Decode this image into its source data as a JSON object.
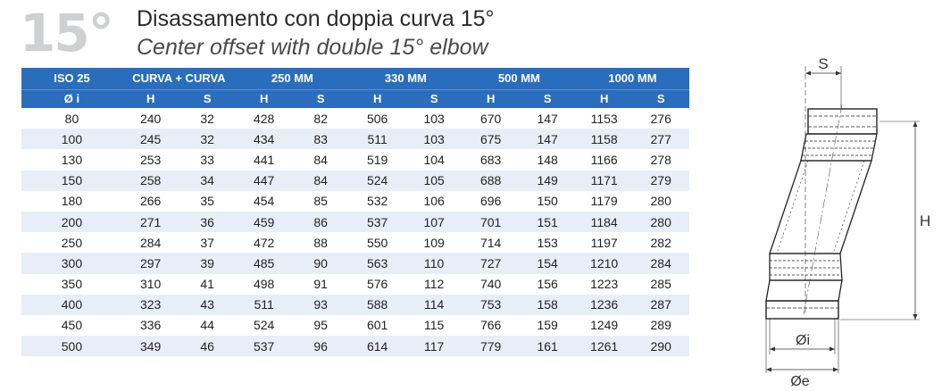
{
  "header": {
    "big_number": "15°",
    "title_it": "Disassamento con doppia curva 15°",
    "title_en": "Center offset with double 15° elbow"
  },
  "table": {
    "group_headers": [
      "ISO 25",
      "CURVA + CURVA",
      "250 MM",
      "330 MM",
      "500 MM",
      "1000 MM"
    ],
    "sub_headers": [
      "Ø i",
      "H",
      "S",
      "H",
      "S",
      "H",
      "S",
      "H",
      "S",
      "H",
      "S"
    ],
    "rows": [
      [
        "80",
        "240",
        "32",
        "428",
        "82",
        "506",
        "103",
        "670",
        "147",
        "1153",
        "276"
      ],
      [
        "100",
        "245",
        "32",
        "434",
        "83",
        "511",
        "103",
        "675",
        "147",
        "1158",
        "277"
      ],
      [
        "130",
        "253",
        "33",
        "441",
        "84",
        "519",
        "104",
        "683",
        "148",
        "1166",
        "278"
      ],
      [
        "150",
        "258",
        "34",
        "447",
        "84",
        "524",
        "105",
        "688",
        "149",
        "1171",
        "279"
      ],
      [
        "180",
        "266",
        "35",
        "454",
        "85",
        "532",
        "106",
        "696",
        "150",
        "1179",
        "280"
      ],
      [
        "200",
        "271",
        "36",
        "459",
        "86",
        "537",
        "107",
        "701",
        "151",
        "1184",
        "280"
      ],
      [
        "250",
        "284",
        "37",
        "472",
        "88",
        "550",
        "109",
        "714",
        "153",
        "1197",
        "282"
      ],
      [
        "300",
        "297",
        "39",
        "485",
        "90",
        "563",
        "110",
        "727",
        "154",
        "1210",
        "284"
      ],
      [
        "350",
        "310",
        "41",
        "498",
        "91",
        "576",
        "112",
        "740",
        "156",
        "1223",
        "285"
      ],
      [
        "400",
        "323",
        "43",
        "511",
        "93",
        "588",
        "114",
        "753",
        "158",
        "1236",
        "287"
      ],
      [
        "450",
        "336",
        "44",
        "524",
        "95",
        "601",
        "115",
        "766",
        "159",
        "1249",
        "289"
      ],
      [
        "500",
        "349",
        "46",
        "537",
        "96",
        "614",
        "117",
        "779",
        "161",
        "1261",
        "290"
      ]
    ]
  },
  "drawing": {
    "label_s": "S",
    "label_h": "H",
    "label_di": "Øi",
    "label_de": "Øe"
  }
}
